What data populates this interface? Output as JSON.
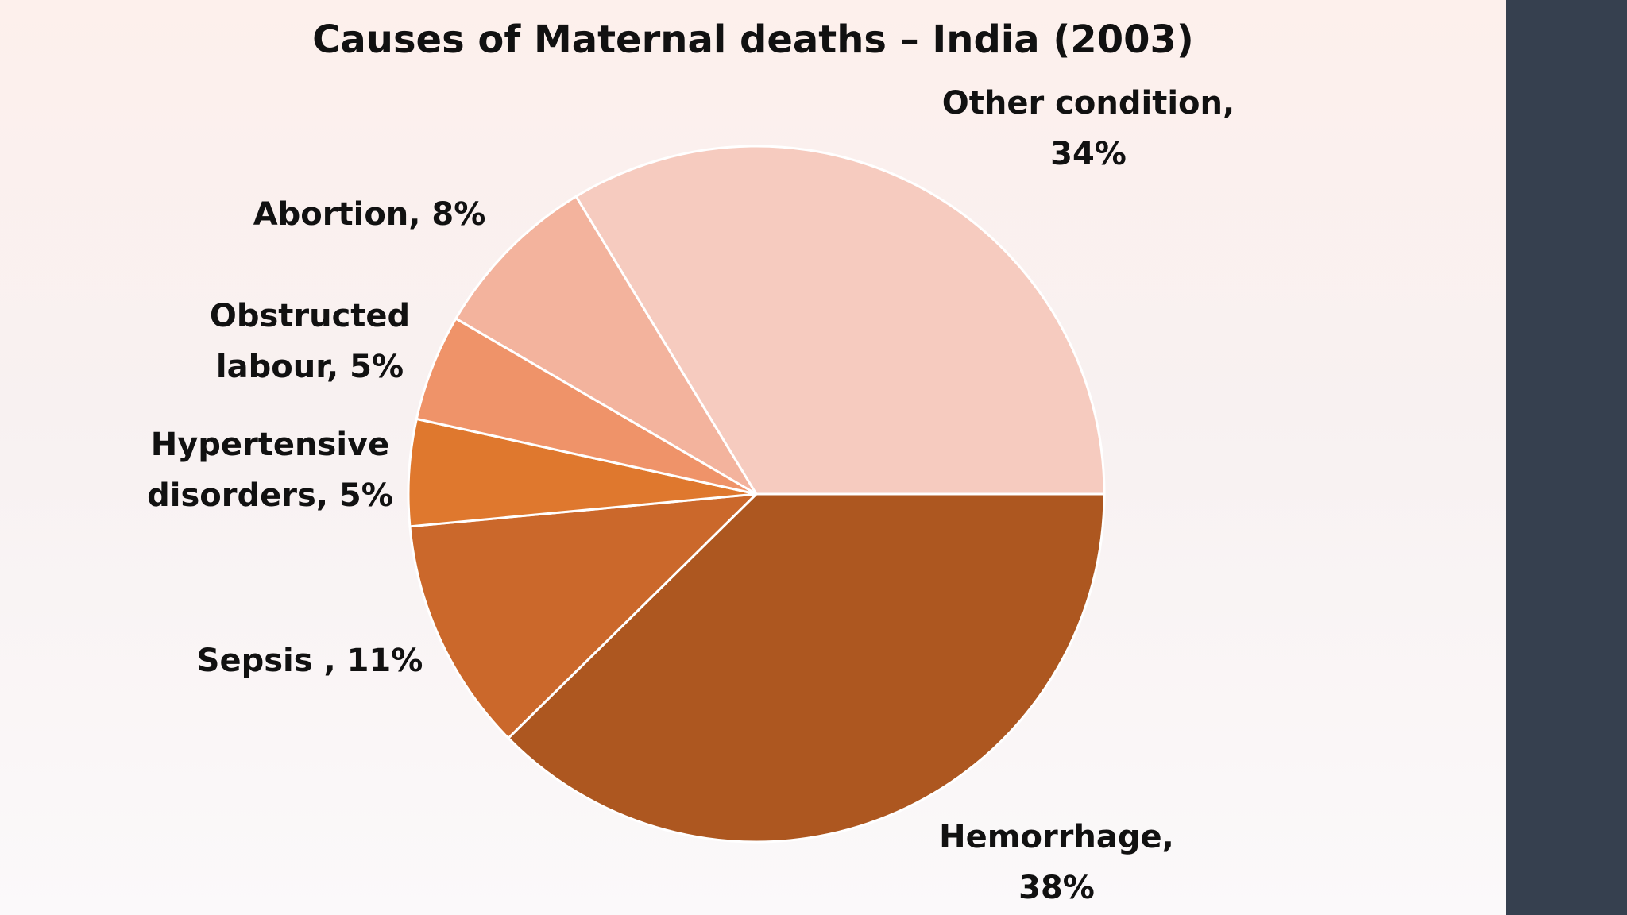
{
  "slide": {
    "sidebar_color": "#36404f"
  },
  "chart_data": {
    "type": "pie",
    "title": "Causes of Maternal deaths – India (2003)",
    "slices": [
      {
        "label": "Hemorrhage",
        "value": 38,
        "color": "#ad5720",
        "text": "Hemorrhage, 38%",
        "line1": "Hemorrhage,",
        "line2": "38%"
      },
      {
        "label": "Sepsis",
        "value": 11,
        "color": "#cb682b",
        "text": "Sepsis , 11%",
        "line1": "Sepsis , 11%",
        "line2": ""
      },
      {
        "label": "Hypertensive disorders",
        "value": 5,
        "color": "#df782e",
        "text": "Hypertensive disorders, 5%",
        "line1": "Hypertensive",
        "line2": "disorders, 5%"
      },
      {
        "label": "Obstructed labour",
        "value": 5,
        "color": "#ef9369",
        "text": "Obstructed labour, 5%",
        "line1": "Obstructed",
        "line2": "labour, 5%"
      },
      {
        "label": "Abortion",
        "value": 8,
        "color": "#f3b39d",
        "text": "Abortion, 8%",
        "line1": "Abortion, 8%",
        "line2": ""
      },
      {
        "label": "Other condition",
        "value": 34,
        "color": "#f6cbbf",
        "text": "Other condition, 34%",
        "line1": "Other condition,",
        "line2": "34%"
      }
    ]
  }
}
